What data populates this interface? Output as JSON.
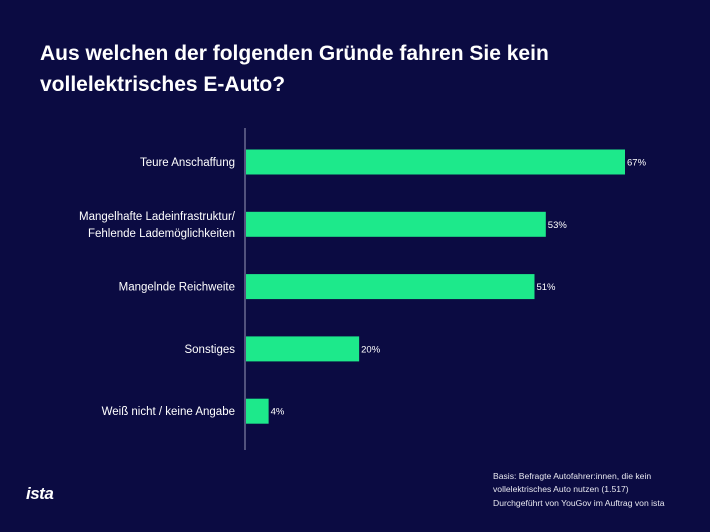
{
  "title": "Aus welchen der folgenden Gründe fahren Sie kein vollelektrisches E-Auto?",
  "footnote": {
    "line1": "Basis: Befragte Autofahrer:innen, die kein vollelektrisches Auto nutzen (1.517)",
    "line2": "Durchgeführt von YouGov im Auftrag von ista"
  },
  "logo": "ista",
  "colors": {
    "background": "#0b0b42",
    "bar": "#1de98b",
    "text": "#ffffff"
  },
  "chart_data": {
    "type": "bar",
    "orientation": "horizontal",
    "categories": [
      [
        "Teure Anschaffung"
      ],
      [
        "Mangelhafte Ladeinfrastruktur/",
        "Fehlende Lademöglichkeiten"
      ],
      [
        "Mangelnde Reichweite"
      ],
      [
        "Sonstiges"
      ],
      [
        "Weiß nicht / keine Angabe"
      ]
    ],
    "values": [
      67,
      53,
      51,
      20,
      4
    ],
    "data_labels": [
      "67%",
      "53%",
      "51%",
      "20%",
      "4%"
    ],
    "unit": "%",
    "xlim": [
      0,
      100
    ],
    "grid": false
  }
}
